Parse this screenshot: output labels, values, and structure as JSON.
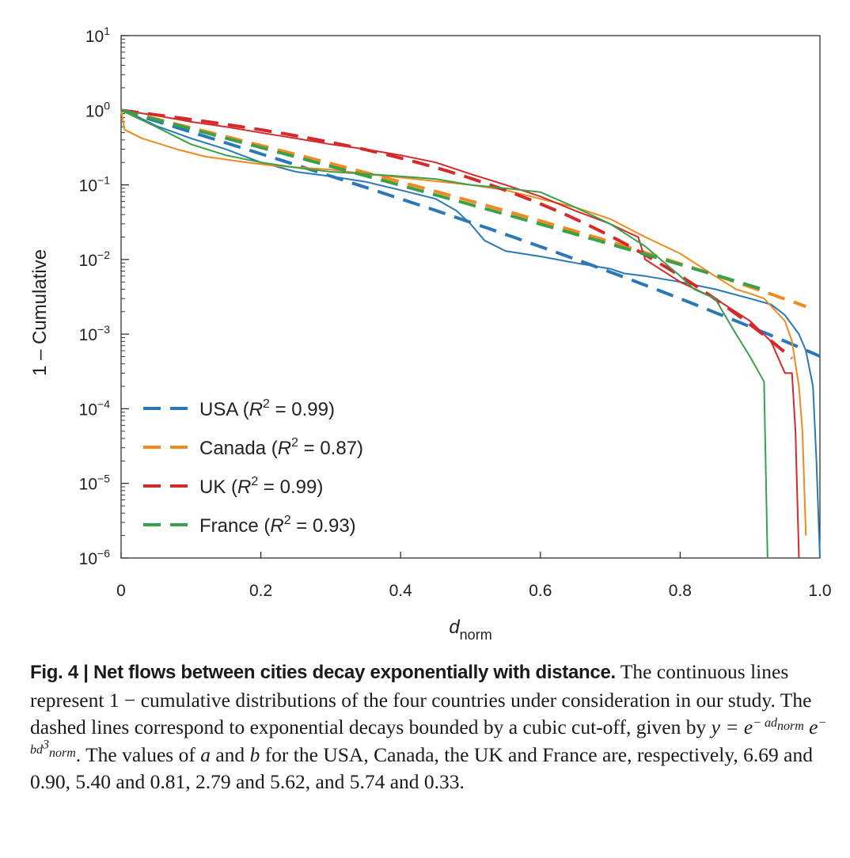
{
  "chart_data": {
    "type": "line",
    "xlabel_main": "d",
    "xlabel_sub": "norm",
    "ylabel": "1 – Cumulative",
    "xlim": [
      0,
      1.0
    ],
    "ylim": [
      1e-06,
      10
    ],
    "y_scale": "log",
    "x_ticks": [
      0,
      0.2,
      0.4,
      0.6,
      0.8,
      1.0
    ],
    "x_tick_labels": [
      "0",
      "0.2",
      "0.4",
      "0.6",
      "0.8",
      "1.0"
    ],
    "y_ticks": [
      {
        "value": 10,
        "base": "10",
        "exp": "1"
      },
      {
        "value": 1,
        "base": "10",
        "exp": "0"
      },
      {
        "value": 0.1,
        "base": "10",
        "exp": "−1"
      },
      {
        "value": 0.01,
        "base": "10",
        "exp": "−2"
      },
      {
        "value": 0.001,
        "base": "10",
        "exp": "−3"
      },
      {
        "value": 0.0001,
        "base": "10",
        "exp": "−4"
      },
      {
        "value": 1e-05,
        "base": "10",
        "exp": "−5"
      },
      {
        "value": 1e-06,
        "base": "10",
        "exp": "−6"
      }
    ],
    "grid": false,
    "legend_position": "bottom-left",
    "series": [
      {
        "name": "USA",
        "r2": "0.99",
        "color": "#2a78b8",
        "fit": {
          "a": 6.69,
          "b": 0.9,
          "x_range": [
            0,
            1.0
          ]
        },
        "empirical": [
          [
            0,
            1.0
          ],
          [
            0.02,
            0.85
          ],
          [
            0.05,
            0.62
          ],
          [
            0.1,
            0.42
          ],
          [
            0.15,
            0.3
          ],
          [
            0.2,
            0.2
          ],
          [
            0.25,
            0.15
          ],
          [
            0.3,
            0.13
          ],
          [
            0.35,
            0.11
          ],
          [
            0.4,
            0.085
          ],
          [
            0.45,
            0.065
          ],
          [
            0.48,
            0.045
          ],
          [
            0.5,
            0.03
          ],
          [
            0.52,
            0.018
          ],
          [
            0.55,
            0.013
          ],
          [
            0.6,
            0.011
          ],
          [
            0.65,
            0.009
          ],
          [
            0.7,
            0.0075
          ],
          [
            0.72,
            0.0065
          ],
          [
            0.75,
            0.006
          ],
          [
            0.8,
            0.005
          ],
          [
            0.85,
            0.004
          ],
          [
            0.9,
            0.003
          ],
          [
            0.93,
            0.0025
          ],
          [
            0.95,
            0.0018
          ],
          [
            0.97,
            0.001
          ],
          [
            0.98,
            0.0006
          ],
          [
            0.99,
            0.0002
          ],
          [
            0.995,
            2e-05
          ],
          [
            1.0,
            1e-06
          ]
        ]
      },
      {
        "name": "Canada",
        "r2": "0.87",
        "color": "#f08a1e",
        "fit": {
          "a": 5.4,
          "b": 0.81,
          "x_range": [
            0,
            0.98
          ]
        },
        "empirical": [
          [
            0,
            1.0
          ],
          [
            0.005,
            0.55
          ],
          [
            0.03,
            0.42
          ],
          [
            0.08,
            0.3
          ],
          [
            0.12,
            0.24
          ],
          [
            0.18,
            0.2
          ],
          [
            0.22,
            0.18
          ],
          [
            0.3,
            0.16
          ],
          [
            0.35,
            0.14
          ],
          [
            0.42,
            0.12
          ],
          [
            0.5,
            0.1
          ],
          [
            0.55,
            0.085
          ],
          [
            0.6,
            0.065
          ],
          [
            0.65,
            0.05
          ],
          [
            0.7,
            0.035
          ],
          [
            0.75,
            0.02
          ],
          [
            0.8,
            0.012
          ],
          [
            0.85,
            0.006
          ],
          [
            0.88,
            0.004
          ],
          [
            0.9,
            0.0035
          ],
          [
            0.92,
            0.003
          ],
          [
            0.95,
            0.0015
          ],
          [
            0.96,
            0.0008
          ],
          [
            0.97,
            0.0002
          ],
          [
            0.975,
            5e-05
          ],
          [
            0.98,
            2e-06
          ]
        ]
      },
      {
        "name": "UK",
        "r2": "0.99",
        "color": "#d42a2a",
        "fit": {
          "a": 2.79,
          "b": 5.62,
          "x_range": [
            0,
            0.96
          ]
        },
        "empirical": [
          [
            0,
            1.0
          ],
          [
            0.05,
            0.85
          ],
          [
            0.1,
            0.7
          ],
          [
            0.15,
            0.6
          ],
          [
            0.2,
            0.5
          ],
          [
            0.25,
            0.42
          ],
          [
            0.3,
            0.35
          ],
          [
            0.35,
            0.3
          ],
          [
            0.4,
            0.25
          ],
          [
            0.45,
            0.2
          ],
          [
            0.5,
            0.14
          ],
          [
            0.55,
            0.1
          ],
          [
            0.6,
            0.07
          ],
          [
            0.65,
            0.045
          ],
          [
            0.7,
            0.03
          ],
          [
            0.73,
            0.022
          ],
          [
            0.74,
            0.02
          ],
          [
            0.75,
            0.01
          ],
          [
            0.8,
            0.005
          ],
          [
            0.85,
            0.003
          ],
          [
            0.9,
            0.0015
          ],
          [
            0.93,
            0.0008
          ],
          [
            0.95,
            0.0003
          ],
          [
            0.96,
            0.0003
          ],
          [
            0.965,
            5e-05
          ],
          [
            0.97,
            1e-06
          ]
        ]
      },
      {
        "name": "France",
        "r2": "0.93",
        "color": "#3aa04a",
        "fit": {
          "a": 5.74,
          "b": 0.33,
          "x_range": [
            0,
            0.92
          ]
        },
        "empirical": [
          [
            0,
            1.0
          ],
          [
            0.05,
            0.6
          ],
          [
            0.1,
            0.35
          ],
          [
            0.15,
            0.25
          ],
          [
            0.2,
            0.2
          ],
          [
            0.25,
            0.17
          ],
          [
            0.3,
            0.15
          ],
          [
            0.35,
            0.14
          ],
          [
            0.4,
            0.13
          ],
          [
            0.45,
            0.12
          ],
          [
            0.5,
            0.1
          ],
          [
            0.55,
            0.09
          ],
          [
            0.6,
            0.08
          ],
          [
            0.65,
            0.05
          ],
          [
            0.7,
            0.03
          ],
          [
            0.75,
            0.015
          ],
          [
            0.8,
            0.006
          ],
          [
            0.82,
            0.004
          ],
          [
            0.85,
            0.003
          ],
          [
            0.88,
            0.001
          ],
          [
            0.9,
            0.0005
          ],
          [
            0.92,
            0.00023
          ],
          [
            0.925,
            1e-06
          ]
        ]
      }
    ]
  },
  "caption": {
    "lead": "Fig. 4 | Net flows between cities decay exponentially with distance.",
    "part1": " The continuous lines represent 1 − cumulative distributions of the four countries under consideration in our study. The dashed lines correspond to exponential decays bounded by a cubic cut-off, given by ",
    "formula_y": "y = e",
    "formula_exp1": "− ad",
    "formula_exp1_sub": "norm",
    "formula_e2": " e",
    "formula_exp2": "− bd",
    "formula_exp2_sup": "3",
    "formula_exp2_sub": "norm",
    "part2": ". The values of ",
    "var_a": "a",
    "and": " and ",
    "var_b": "b",
    "part3": " for the USA, Canada, the UK and France are, respectively, 6.69 and 0.90, 5.40 and 0.81, 2.79 and 5.62, and 5.74 and 0.33."
  }
}
